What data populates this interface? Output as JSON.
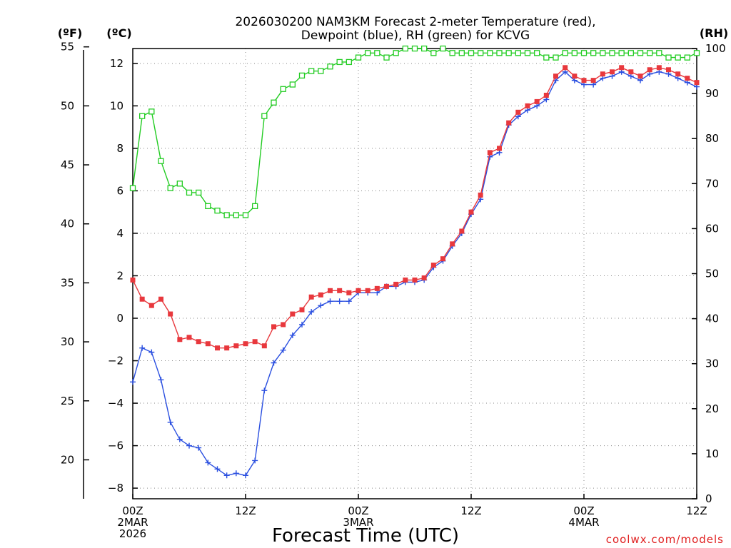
{
  "chart_data": {
    "type": "line",
    "title_lines": [
      "2026030200 NAM3KM Forecast 2-meter Temperature (red),",
      "Dewpoint (blue), RH (green) for KCVG"
    ],
    "xlabel": "Forecast Time (UTC)",
    "units": {
      "f": "(ºF)",
      "c": "(ºC)",
      "rh": "(RH)"
    },
    "credit": "coolwx.com/models",
    "x_range_hours": [
      0,
      60
    ],
    "ylim_c": [
      -8.5,
      12.7
    ],
    "ylim_rh": [
      0,
      100
    ],
    "x_ticks": [
      {
        "h": 0,
        "lines": [
          "00Z",
          "2MAR",
          "2026"
        ]
      },
      {
        "h": 12,
        "lines": [
          "12Z"
        ]
      },
      {
        "h": 24,
        "lines": [
          "00Z",
          "3MAR"
        ]
      },
      {
        "h": 36,
        "lines": [
          "12Z"
        ]
      },
      {
        "h": 48,
        "lines": [
          "00Z",
          "4MAR"
        ]
      },
      {
        "h": 60,
        "lines": [
          "12Z"
        ]
      }
    ],
    "c_ticks": [
      12,
      10,
      8,
      6,
      4,
      2,
      0,
      -2,
      -4,
      -6,
      -8
    ],
    "c_tick_labels": [
      "12",
      "10",
      "8",
      "6",
      "4",
      "2",
      "0",
      "−2",
      "−4",
      "−6",
      "−8"
    ],
    "f_ticks": [
      55,
      50,
      45,
      40,
      35,
      30,
      25,
      20
    ],
    "rh_ticks": [
      100,
      90,
      80,
      70,
      60,
      50,
      40,
      30,
      20,
      10,
      0
    ],
    "series": [
      {
        "name": "2-meter Temperature (red)",
        "unit": "C",
        "color": "#e8383d",
        "marker": "filled-square",
        "x": [
          0,
          1,
          2,
          3,
          4,
          5,
          6,
          7,
          8,
          9,
          10,
          11,
          12,
          13,
          14,
          15,
          16,
          17,
          18,
          19,
          20,
          21,
          22,
          23,
          24,
          25,
          26,
          27,
          28,
          29,
          30,
          31,
          32,
          33,
          34,
          35,
          36,
          37,
          38,
          39,
          40,
          41,
          42,
          43,
          44,
          45,
          46,
          47,
          48,
          49,
          50,
          51,
          52,
          53,
          54,
          55,
          56,
          57,
          58,
          59,
          60
        ],
        "values": [
          1.8,
          0.9,
          0.6,
          0.9,
          0.2,
          -1.0,
          -0.9,
          -1.1,
          -1.2,
          -1.4,
          -1.4,
          -1.3,
          -1.2,
          -1.1,
          -1.3,
          -0.4,
          -0.3,
          0.2,
          0.4,
          1.0,
          1.1,
          1.3,
          1.3,
          1.2,
          1.3,
          1.3,
          1.4,
          1.5,
          1.6,
          1.8,
          1.8,
          1.9,
          2.5,
          2.8,
          3.5,
          4.1,
          5.0,
          5.8,
          7.8,
          8.0,
          9.2,
          9.7,
          10.0,
          10.2,
          10.5,
          11.4,
          11.8,
          11.4,
          11.2,
          11.2,
          11.5,
          11.6,
          11.8,
          11.6,
          11.4,
          11.7,
          11.8,
          11.7,
          11.5,
          11.3,
          11.1
        ]
      },
      {
        "name": "Dewpoint (blue)",
        "unit": "C",
        "color": "#2a4fe0",
        "marker": "plus",
        "x": [
          0,
          1,
          2,
          3,
          4,
          5,
          6,
          7,
          8,
          9,
          10,
          11,
          12,
          13,
          14,
          15,
          16,
          17,
          18,
          19,
          20,
          21,
          22,
          23,
          24,
          25,
          26,
          27,
          28,
          29,
          30,
          31,
          32,
          33,
          34,
          35,
          36,
          37,
          38,
          39,
          40,
          41,
          42,
          43,
          44,
          45,
          46,
          47,
          48,
          49,
          50,
          51,
          52,
          53,
          54,
          55,
          56,
          57,
          58,
          59,
          60
        ],
        "values": [
          -3.0,
          -1.4,
          -1.6,
          -2.9,
          -4.9,
          -5.7,
          -6.0,
          -6.1,
          -6.8,
          -7.1,
          -7.4,
          -7.3,
          -7.4,
          -6.7,
          -3.4,
          -2.1,
          -1.5,
          -0.8,
          -0.3,
          0.3,
          0.6,
          0.8,
          0.8,
          0.8,
          1.2,
          1.2,
          1.2,
          1.5,
          1.5,
          1.7,
          1.7,
          1.8,
          2.4,
          2.7,
          3.4,
          4.0,
          4.9,
          5.6,
          7.6,
          7.8,
          9.1,
          9.5,
          9.8,
          10.0,
          10.3,
          11.2,
          11.6,
          11.2,
          11.0,
          11.0,
          11.3,
          11.4,
          11.6,
          11.4,
          11.2,
          11.5,
          11.6,
          11.5,
          11.3,
          11.1,
          10.9
        ]
      },
      {
        "name": "RH (green)",
        "unit": "%",
        "color": "#22cc22",
        "marker": "open-square",
        "x": [
          0,
          1,
          2,
          3,
          4,
          5,
          6,
          7,
          8,
          9,
          10,
          11,
          12,
          13,
          14,
          15,
          16,
          17,
          18,
          19,
          20,
          21,
          22,
          23,
          24,
          25,
          26,
          27,
          28,
          29,
          30,
          31,
          32,
          33,
          34,
          35,
          36,
          37,
          38,
          39,
          40,
          41,
          42,
          43,
          44,
          45,
          46,
          47,
          48,
          49,
          50,
          51,
          52,
          53,
          54,
          55,
          56,
          57,
          58,
          59,
          60
        ],
        "values": [
          69,
          85,
          86,
          75,
          69,
          70,
          68,
          68,
          65,
          64,
          63,
          63,
          63,
          65,
          85,
          88,
          91,
          92,
          94,
          95,
          95,
          96,
          97,
          97,
          98,
          99,
          99,
          98,
          99,
          100,
          100,
          100,
          99,
          100,
          99,
          99,
          99,
          99,
          99,
          99,
          99,
          99,
          99,
          99,
          98,
          98,
          99,
          99,
          99,
          99,
          99,
          99,
          99,
          99,
          99,
          99,
          99,
          98,
          98,
          98,
          99
        ]
      }
    ]
  }
}
